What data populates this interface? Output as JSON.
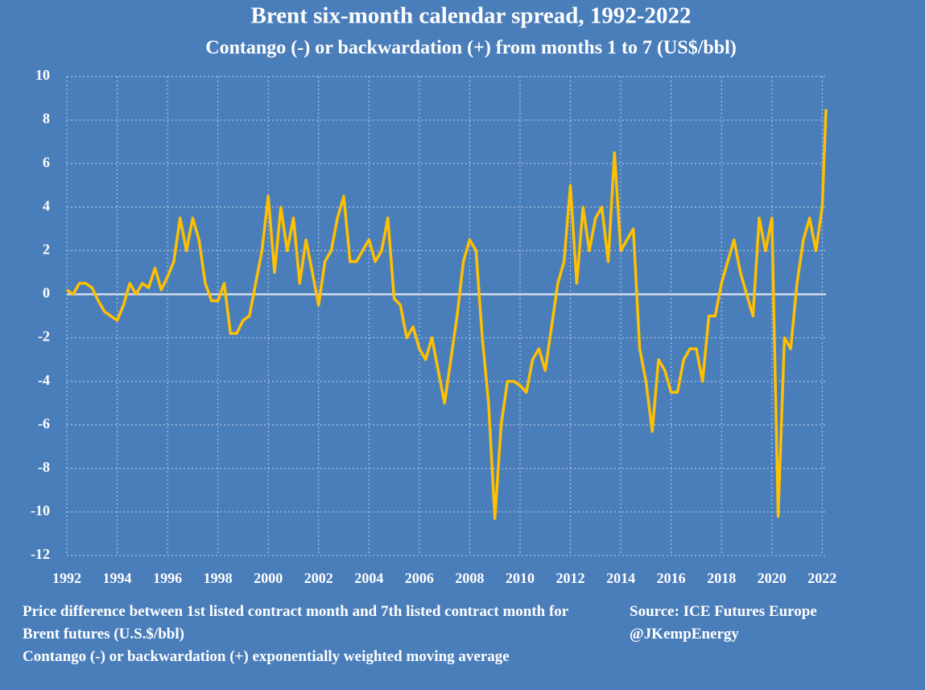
{
  "chart_data": {
    "type": "line",
    "title": "Brent six-month calendar spread, 1992-2022",
    "subtitle": "Contango (-) or backwardation (+) from months 1 to 7 (US$/bbl)",
    "x": [
      1992,
      1992.25,
      1992.5,
      1992.75,
      1993,
      1993.25,
      1993.5,
      1993.75,
      1994,
      1994.25,
      1994.5,
      1994.75,
      1995,
      1995.25,
      1995.5,
      1995.75,
      1996,
      1996.25,
      1996.5,
      1996.75,
      1997,
      1997.25,
      1997.5,
      1997.75,
      1998,
      1998.25,
      1998.5,
      1998.75,
      1999,
      1999.25,
      1999.5,
      1999.75,
      2000,
      2000.25,
      2000.5,
      2000.75,
      2001,
      2001.25,
      2001.5,
      2001.75,
      2002,
      2002.25,
      2002.5,
      2002.75,
      2003,
      2003.25,
      2003.5,
      2003.75,
      2004,
      2004.25,
      2004.5,
      2004.75,
      2005,
      2005.25,
      2005.5,
      2005.75,
      2006,
      2006.25,
      2006.5,
      2006.75,
      2007,
      2007.25,
      2007.5,
      2007.75,
      2008,
      2008.25,
      2008.5,
      2008.75,
      2009,
      2009.25,
      2009.5,
      2009.75,
      2010,
      2010.25,
      2010.5,
      2010.75,
      2011,
      2011.25,
      2011.5,
      2011.75,
      2012,
      2012.25,
      2012.5,
      2012.75,
      2013,
      2013.25,
      2013.5,
      2013.75,
      2014,
      2014.25,
      2014.5,
      2014.75,
      2015,
      2015.25,
      2015.5,
      2015.75,
      2016,
      2016.25,
      2016.5,
      2016.75,
      2017,
      2017.25,
      2017.5,
      2017.75,
      2018,
      2018.25,
      2018.5,
      2018.75,
      2019,
      2019.25,
      2019.5,
      2019.75,
      2020,
      2020.25,
      2020.5,
      2020.75,
      2021,
      2021.25,
      2021.5,
      2021.75,
      2022,
      2022.15
    ],
    "series": [
      {
        "name": "Contango (-) or backwardation (+) exponentially weighted moving average",
        "color": "#ffc000",
        "values": [
          0.2,
          0.0,
          0.5,
          0.5,
          0.3,
          -0.3,
          -0.8,
          -1.0,
          -1.2,
          -0.5,
          0.5,
          0.0,
          0.5,
          0.3,
          1.2,
          0.2,
          0.8,
          1.5,
          3.5,
          2.0,
          3.5,
          2.5,
          0.5,
          -0.3,
          -0.3,
          0.5,
          -1.8,
          -1.8,
          -1.2,
          -1.0,
          0.5,
          2.0,
          4.5,
          1.0,
          4.0,
          2.0,
          3.5,
          0.5,
          2.5,
          1.0,
          -0.5,
          1.5,
          2.0,
          3.5,
          4.5,
          1.5,
          1.5,
          2.0,
          2.5,
          1.5,
          2.0,
          3.5,
          -0.2,
          -0.5,
          -2.0,
          -1.5,
          -2.5,
          -3.0,
          -2.0,
          -3.5,
          -5.0,
          -3.0,
          -1.0,
          1.5,
          2.5,
          2.0,
          -2.0,
          -5.0,
          -10.3,
          -6.0,
          -4.0,
          -4.0,
          -4.2,
          -4.5,
          -3.0,
          -2.5,
          -3.5,
          -1.5,
          0.5,
          1.5,
          5.0,
          0.5,
          4.0,
          2.0,
          3.5,
          4.0,
          1.5,
          6.5,
          2.0,
          2.5,
          3.0,
          -2.5,
          -4.0,
          -6.3,
          -3.0,
          -3.5,
          -4.5,
          -4.5,
          -3.0,
          -2.5,
          -2.5,
          -4.0,
          -1.0,
          -1.0,
          0.5,
          1.5,
          2.5,
          1.0,
          0.0,
          -1.0,
          3.5,
          2.0,
          3.5,
          -10.2,
          -2.0,
          -2.5,
          0.5,
          2.5,
          3.5,
          2.0,
          4.0,
          8.5
        ]
      }
    ],
    "xlim": [
      1992,
      2022.15
    ],
    "xticks": [
      1992,
      1994,
      1996,
      1998,
      2000,
      2002,
      2004,
      2006,
      2008,
      2010,
      2012,
      2014,
      2016,
      2018,
      2020,
      2022
    ],
    "ylim": [
      -12,
      10
    ],
    "yticks": [
      -12,
      -10,
      -8,
      -6,
      -4,
      -2,
      0,
      2,
      4,
      6,
      8,
      10
    ],
    "grid": true,
    "notes": [
      "Price difference between 1st listed contract month and 7th listed contract month for Brent futures (U.S.$/bbl)",
      "Contango (-) or backwardation (+) exponentially weighted moving average"
    ],
    "source": [
      "Source: ICE Futures Europe",
      "@JKempEnergy"
    ]
  }
}
